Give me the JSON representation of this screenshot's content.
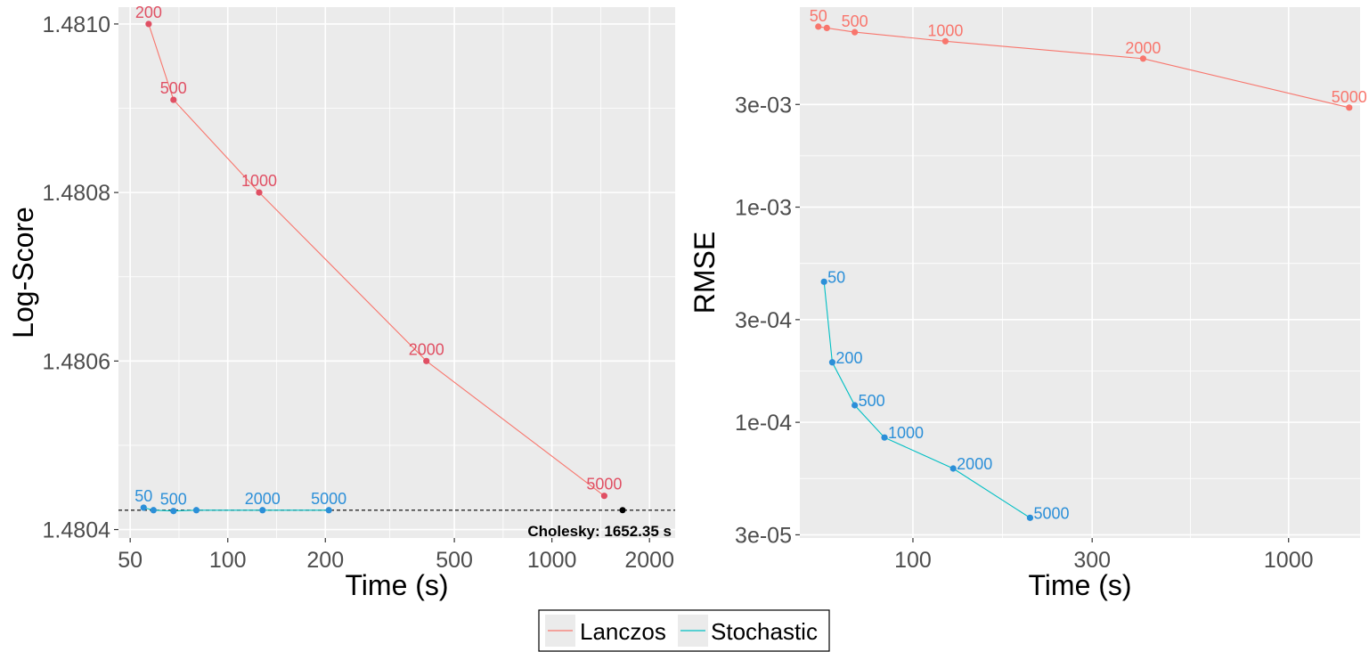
{
  "chart_data": [
    {
      "type": "line",
      "xscale": "log",
      "xlabel": "Time (s)",
      "ylabel": "Log-Score",
      "xlim": [
        46,
        2400
      ],
      "ylim": [
        1.48039,
        1.48102
      ],
      "xticks": [
        50,
        100,
        200,
        500,
        1000,
        2000
      ],
      "xtick_labels": [
        "50",
        "100",
        "200",
        "500",
        "1000",
        "2000"
      ],
      "yticks": [
        1.4804,
        1.4806,
        1.4808,
        1.481
      ],
      "ytick_labels": [
        "1.4804",
        "1.4806",
        "1.4808",
        "1.4810"
      ],
      "series": [
        {
          "name": "Lanczos",
          "color": "#F8766D",
          "point_color": "#E05064",
          "points": [
            {
              "x": 57,
              "y": 1.481,
              "label": "200"
            },
            {
              "x": 68,
              "y": 1.48091,
              "label": "500"
            },
            {
              "x": 125,
              "y": 1.4808,
              "label": "1000"
            },
            {
              "x": 410,
              "y": 1.4806,
              "label": "2000"
            },
            {
              "x": 1450,
              "y": 1.48044,
              "label": "5000"
            }
          ]
        },
        {
          "name": "Stochastic",
          "color": "#00BFC4",
          "point_color": "#2B8FD8",
          "points": [
            {
              "x": 55,
              "y": 1.480426,
              "label": "50"
            },
            {
              "x": 59,
              "y": 1.480423,
              "label": ""
            },
            {
              "x": 68,
              "y": 1.480422,
              "label": "500"
            },
            {
              "x": 80,
              "y": 1.480423,
              "label": ""
            },
            {
              "x": 128,
              "y": 1.480423,
              "label": "2000"
            },
            {
              "x": 205,
              "y": 1.480423,
              "label": "5000"
            }
          ]
        }
      ],
      "reference": {
        "y": 1.480423,
        "x": 1652.35,
        "label": "Cholesky: 1652.35 s"
      }
    },
    {
      "type": "line",
      "xscale": "log",
      "yscale": "log",
      "xlabel": "Time (s)",
      "ylabel": "RMSE",
      "xlim": [
        50,
        1550
      ],
      "ylim": [
        2.9e-05,
        0.0085
      ],
      "xticks": [
        100,
        300,
        1000
      ],
      "xtick_labels": [
        "100",
        "300",
        "1000"
      ],
      "yticks": [
        3e-05,
        0.0001,
        0.0003,
        0.001,
        0.003
      ],
      "ytick_labels": [
        "3e-05",
        "1e-04",
        "3e-04",
        "1e-03",
        "3e-03"
      ],
      "series": [
        {
          "name": "Lanczos",
          "color": "#F8766D",
          "point_color": "#F8766D",
          "points": [
            {
              "x": 56,
              "y": 0.0069,
              "label": "50"
            },
            {
              "x": 59,
              "y": 0.0068,
              "label": ""
            },
            {
              "x": 70,
              "y": 0.0065,
              "label": "500"
            },
            {
              "x": 122,
              "y": 0.0059,
              "label": "1000"
            },
            {
              "x": 410,
              "y": 0.0049,
              "label": "2000"
            },
            {
              "x": 1450,
              "y": 0.0029,
              "label": "5000"
            }
          ]
        },
        {
          "name": "Stochastic",
          "color": "#00BFC4",
          "point_color": "#2B8FD8",
          "points": [
            {
              "x": 58,
              "y": 0.00045,
              "label": "50"
            },
            {
              "x": 61,
              "y": 0.00019,
              "label": "200"
            },
            {
              "x": 70,
              "y": 0.00012,
              "label": "500"
            },
            {
              "x": 84,
              "y": 8.5e-05,
              "label": "1000"
            },
            {
              "x": 128,
              "y": 6.1e-05,
              "label": "2000"
            },
            {
              "x": 205,
              "y": 3.6e-05,
              "label": "5000"
            }
          ]
        }
      ]
    }
  ],
  "legend": {
    "items": [
      {
        "label": "Lanczos",
        "color": "#F8766D"
      },
      {
        "label": "Stochastic",
        "color": "#00BFC4"
      }
    ]
  }
}
